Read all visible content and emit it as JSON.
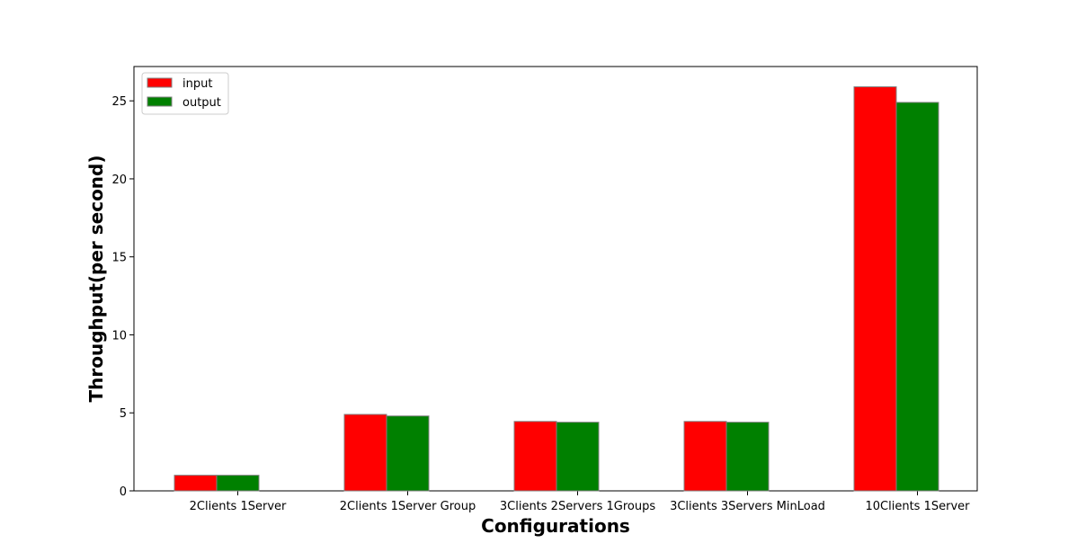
{
  "chart_data": {
    "type": "bar",
    "title": "",
    "xlabel": "Configurations",
    "ylabel": "Throughput(per second)",
    "categories": [
      "2Clients 1Server",
      "2Clients 1Server Group",
      "3Clients 2Servers 1Groups",
      "3Clients 3Servers MinLoad",
      "10Clients 1Server"
    ],
    "series": [
      {
        "name": "input",
        "color": "#ff0000",
        "values": [
          1.0,
          4.9,
          4.45,
          4.45,
          25.9
        ]
      },
      {
        "name": "output",
        "color": "#008000",
        "values": [
          1.0,
          4.8,
          4.4,
          4.4,
          24.9
        ]
      }
    ],
    "ylim": [
      0,
      27.2
    ],
    "yticks": [
      0,
      5,
      10,
      15,
      20,
      25
    ],
    "grid": false,
    "legend_position": "top-left",
    "bar_edge_color": "#808080"
  }
}
